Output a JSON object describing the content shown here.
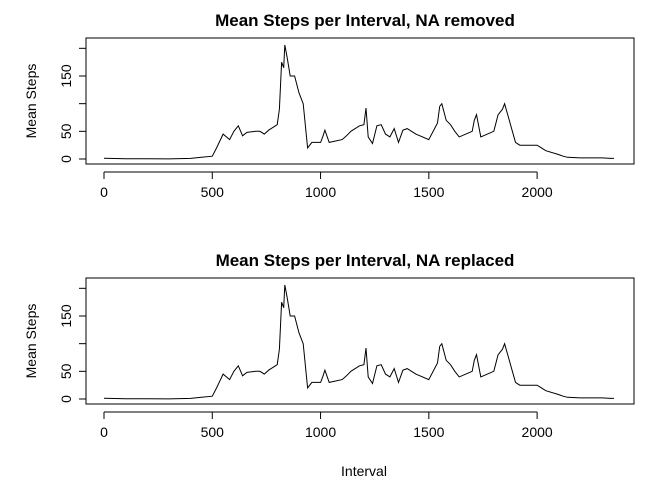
{
  "chart_data": [
    {
      "type": "line",
      "title": "Mean Steps per Interval, NA removed",
      "ylabel": "Mean Steps",
      "xlabel": "",
      "xlim": [
        0,
        2355
      ],
      "ylim": [
        0,
        206
      ],
      "x_ticks": [
        "0",
        "500",
        "1000",
        "1500",
        "2000"
      ],
      "y_ticks": [
        "0",
        "50",
        "150"
      ],
      "grid": false,
      "legend": "none",
      "x": [
        0,
        100,
        200,
        300,
        400,
        450,
        500,
        520,
        550,
        580,
        600,
        620,
        640,
        660,
        700,
        720,
        740,
        760,
        800,
        810,
        820,
        830,
        835,
        845,
        860,
        880,
        900,
        920,
        940,
        960,
        1000,
        1010,
        1020,
        1040,
        1100,
        1120,
        1140,
        1160,
        1180,
        1200,
        1210,
        1220,
        1240,
        1260,
        1280,
        1300,
        1320,
        1340,
        1360,
        1380,
        1400,
        1420,
        1440,
        1500,
        1540,
        1550,
        1560,
        1580,
        1600,
        1620,
        1640,
        1700,
        1710,
        1720,
        1740,
        1800,
        1820,
        1840,
        1850,
        1900,
        1920,
        1940,
        2000,
        2020,
        2040,
        2100,
        2120,
        2140,
        2200,
        2240,
        2300,
        2340,
        2355
      ],
      "values": [
        1.5,
        0.5,
        0.3,
        0.2,
        1,
        3,
        5,
        20,
        45,
        35,
        50,
        60,
        42,
        48,
        50,
        50,
        45,
        52,
        62,
        90,
        175,
        165,
        206,
        185,
        150,
        150,
        120,
        100,
        20,
        30,
        30,
        40,
        52,
        30,
        35,
        42,
        50,
        55,
        60,
        62,
        92,
        40,
        28,
        60,
        62,
        45,
        40,
        55,
        30,
        52,
        55,
        50,
        45,
        35,
        65,
        95,
        100,
        70,
        62,
        50,
        40,
        50,
        70,
        80,
        40,
        50,
        80,
        90,
        100,
        30,
        25,
        25,
        25,
        20,
        15,
        8,
        5,
        3,
        2,
        2,
        2,
        1,
        1
      ]
    },
    {
      "type": "line",
      "title": "Mean Steps per Interval, NA replaced",
      "ylabel": "Mean Steps",
      "xlabel": "Interval",
      "xlim": [
        0,
        2355
      ],
      "ylim": [
        0,
        206
      ],
      "x_ticks": [
        "0",
        "500",
        "1000",
        "1500",
        "2000"
      ],
      "y_ticks": [
        "0",
        "50",
        "150"
      ],
      "grid": false,
      "legend": "none",
      "x": [
        0,
        100,
        200,
        300,
        400,
        450,
        500,
        520,
        550,
        580,
        600,
        620,
        640,
        660,
        700,
        720,
        740,
        760,
        800,
        810,
        820,
        830,
        835,
        845,
        860,
        880,
        900,
        920,
        940,
        960,
        1000,
        1010,
        1020,
        1040,
        1100,
        1120,
        1140,
        1160,
        1180,
        1200,
        1210,
        1220,
        1240,
        1260,
        1280,
        1300,
        1320,
        1340,
        1360,
        1380,
        1400,
        1420,
        1440,
        1500,
        1540,
        1550,
        1560,
        1580,
        1600,
        1620,
        1640,
        1700,
        1710,
        1720,
        1740,
        1800,
        1820,
        1840,
        1850,
        1900,
        1920,
        1940,
        2000,
        2020,
        2040,
        2100,
        2120,
        2140,
        2200,
        2240,
        2300,
        2340,
        2355
      ],
      "values": [
        1.5,
        0.5,
        0.3,
        0.2,
        1,
        3,
        5,
        20,
        45,
        35,
        50,
        60,
        42,
        48,
        50,
        50,
        45,
        52,
        62,
        90,
        175,
        165,
        206,
        185,
        150,
        150,
        120,
        100,
        20,
        30,
        30,
        40,
        52,
        30,
        35,
        42,
        50,
        55,
        60,
        62,
        92,
        40,
        28,
        60,
        62,
        45,
        40,
        55,
        30,
        52,
        55,
        50,
        45,
        35,
        65,
        95,
        100,
        70,
        62,
        50,
        40,
        50,
        70,
        80,
        40,
        50,
        80,
        90,
        100,
        30,
        25,
        25,
        25,
        20,
        15,
        8,
        5,
        3,
        2,
        2,
        2,
        1,
        1
      ]
    }
  ]
}
